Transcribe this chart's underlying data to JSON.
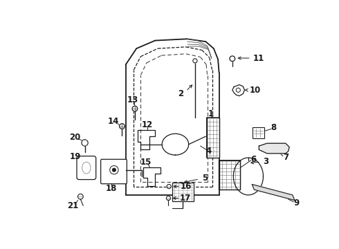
{
  "bg_color": "#ffffff",
  "line_color": "#1a1a1a",
  "dpi": 100,
  "figsize": [
    4.9,
    3.6
  ],
  "font_size": 8.5
}
